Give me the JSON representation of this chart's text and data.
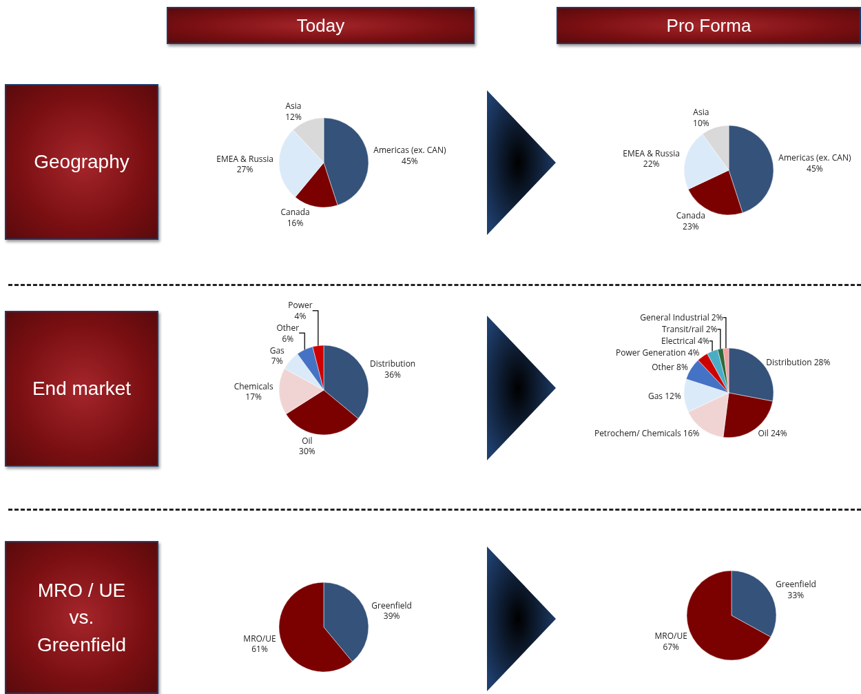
{
  "chart_data": [
    {
      "type": "other",
      "title": "Today"
    },
    {
      "type": "other",
      "title": "Pro Forma"
    },
    {
      "type": "other",
      "title": "Geography"
    },
    {
      "type": "pie",
      "categories": [
        "Americas (ex. CAN)",
        "Canada",
        "EMEA & Russia",
        "Asia"
      ],
      "values": [
        45,
        16,
        27,
        12
      ],
      "value_labels": [
        "45%",
        "16%",
        "27%",
        "12%"
      ],
      "colors": [
        "#34527a",
        "#7b0000",
        "#dbeaf9",
        "#d9d9d9"
      ]
    },
    {
      "type": "pie",
      "categories": [
        "Americas (ex. CAN)",
        "Canada",
        "EMEA & Russia",
        "Asia"
      ],
      "values": [
        45,
        23,
        22,
        10
      ],
      "value_labels": [
        "45%",
        "23%",
        "22%",
        "10%"
      ],
      "colors": [
        "#34527a",
        "#7b0000",
        "#dbeaf9",
        "#d9d9d9"
      ]
    },
    {
      "type": "other",
      "title": "End market"
    },
    {
      "type": "pie",
      "categories": [
        "Distribution",
        "Oil",
        "Chemicals",
        "Gas",
        "Other",
        "Power"
      ],
      "values": [
        36,
        30,
        17,
        7,
        6,
        4
      ],
      "value_labels": [
        "36%",
        "30%",
        "17%",
        "7%",
        "6%",
        "4%"
      ],
      "colors": [
        "#34527a",
        "#7b0000",
        "#f0d4d4",
        "#dbeaf9",
        "#4472c4",
        "#cc0000"
      ]
    },
    {
      "type": "pie",
      "categories": [
        "Distribution",
        "Oil",
        "Petrochem/ Chemicals",
        "Gas",
        "Other",
        "Power Generation",
        "Electrical",
        "Transit/rail",
        "General Industrial"
      ],
      "values": [
        28,
        24,
        16,
        12,
        8,
        4,
        4,
        2,
        2
      ],
      "value_labels": [
        "28%",
        "24%",
        "16%",
        "12%",
        "8%",
        "4%",
        "4%",
        "2%",
        "2%"
      ],
      "colors": [
        "#34527a",
        "#7b0000",
        "#f0d4d4",
        "#dbeaf9",
        "#4472c4",
        "#cc0000",
        "#4bacc6",
        "#2e6b3a",
        "#f4a0a0"
      ]
    },
    {
      "type": "other",
      "title": "MRO / UE vs. Greenfield"
    },
    {
      "type": "pie",
      "categories": [
        "Greenfield",
        "MRO/UE"
      ],
      "values": [
        39,
        61
      ],
      "value_labels": [
        "39%",
        "61%"
      ],
      "colors": [
        "#34527a",
        "#7b0000"
      ]
    },
    {
      "type": "pie",
      "categories": [
        "Greenfield",
        "MRO/UE"
      ],
      "values": [
        33,
        67
      ],
      "value_labels": [
        "33%",
        "67%"
      ],
      "colors": [
        "#34527a",
        "#7b0000"
      ]
    }
  ]
}
